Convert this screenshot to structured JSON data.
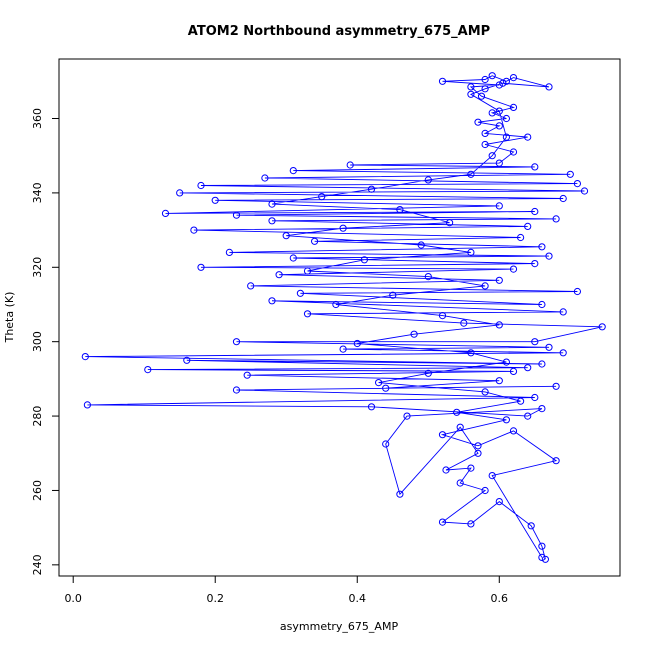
{
  "chart_data": {
    "type": "scatter",
    "title": "ATOM2 Northbound asymmetry_675_AMP",
    "xlabel": "asymmetry_675_AMP",
    "ylabel": "Theta (K)",
    "xlim": [
      -0.02,
      0.77
    ],
    "ylim": [
      237,
      376
    ],
    "xticks": [
      0.0,
      0.2,
      0.4,
      0.6
    ],
    "xtick_labels": [
      "0.0",
      "0.2",
      "0.4",
      "0.6"
    ],
    "yticks": [
      240,
      260,
      280,
      300,
      320,
      340,
      360
    ],
    "ytick_labels": [
      "240",
      "260",
      "280",
      "300",
      "320",
      "340",
      "360"
    ],
    "grid": false,
    "connected": true,
    "series": [
      {
        "color": "#0000ff",
        "marker": "open-circle",
        "points": [
          [
            0.665,
            241.5
          ],
          [
            0.66,
            245.0
          ],
          [
            0.645,
            250.5
          ],
          [
            0.6,
            257.0
          ],
          [
            0.56,
            251.0
          ],
          [
            0.52,
            251.5
          ],
          [
            0.58,
            260.0
          ],
          [
            0.545,
            262.0
          ],
          [
            0.56,
            266.0
          ],
          [
            0.525,
            265.5
          ],
          [
            0.57,
            270.0
          ],
          [
            0.545,
            277.0
          ],
          [
            0.46,
            259.0
          ],
          [
            0.44,
            272.5
          ],
          [
            0.47,
            280.0
          ],
          [
            0.66,
            282.0
          ],
          [
            0.64,
            280.0
          ],
          [
            0.42,
            282.5
          ],
          [
            0.02,
            283.0
          ],
          [
            0.65,
            285.0
          ],
          [
            0.23,
            287.0
          ],
          [
            0.68,
            288.0
          ],
          [
            0.44,
            287.5
          ],
          [
            0.6,
            289.5
          ],
          [
            0.245,
            291.0
          ],
          [
            0.62,
            292.0
          ],
          [
            0.105,
            292.5
          ],
          [
            0.64,
            293.0
          ],
          [
            0.16,
            295.0
          ],
          [
            0.66,
            294.0
          ],
          [
            0.017,
            296.0
          ],
          [
            0.69,
            297.0
          ],
          [
            0.38,
            298.0
          ],
          [
            0.67,
            298.5
          ],
          [
            0.23,
            300.0
          ],
          [
            0.65,
            300.0
          ],
          [
            0.745,
            304.0
          ],
          [
            0.55,
            305.0
          ],
          [
            0.33,
            307.5
          ],
          [
            0.69,
            308.0
          ],
          [
            0.28,
            311.0
          ],
          [
            0.66,
            310.0
          ],
          [
            0.32,
            313.0
          ],
          [
            0.71,
            313.5
          ],
          [
            0.25,
            315.0
          ],
          [
            0.6,
            316.5
          ],
          [
            0.29,
            318.0
          ],
          [
            0.62,
            319.5
          ],
          [
            0.18,
            320.0
          ],
          [
            0.65,
            321.0
          ],
          [
            0.31,
            322.5
          ],
          [
            0.67,
            323.0
          ],
          [
            0.22,
            324.0
          ],
          [
            0.66,
            325.5
          ],
          [
            0.34,
            327.0
          ],
          [
            0.63,
            328.0
          ],
          [
            0.17,
            330.0
          ],
          [
            0.64,
            331.0
          ],
          [
            0.28,
            332.5
          ],
          [
            0.68,
            333.0
          ],
          [
            0.23,
            334.0
          ],
          [
            0.65,
            335.0
          ],
          [
            0.13,
            334.5
          ],
          [
            0.6,
            336.5
          ],
          [
            0.2,
            338.0
          ],
          [
            0.69,
            338.5
          ],
          [
            0.15,
            340.0
          ],
          [
            0.72,
            340.5
          ],
          [
            0.18,
            342.0
          ],
          [
            0.71,
            342.5
          ],
          [
            0.27,
            344.0
          ],
          [
            0.7,
            345.0
          ],
          [
            0.31,
            346.0
          ],
          [
            0.65,
            347.0
          ],
          [
            0.39,
            347.5
          ],
          [
            0.6,
            348.0
          ],
          [
            0.62,
            351.0
          ],
          [
            0.58,
            353.0
          ],
          [
            0.64,
            355.0
          ],
          [
            0.58,
            356.0
          ],
          [
            0.6,
            358.0
          ],
          [
            0.57,
            359.0
          ],
          [
            0.61,
            360.0
          ],
          [
            0.59,
            361.5
          ],
          [
            0.62,
            363.0
          ],
          [
            0.575,
            366.0
          ],
          [
            0.56,
            368.5
          ],
          [
            0.6,
            369.0
          ],
          [
            0.52,
            370.0
          ],
          [
            0.58,
            370.5
          ],
          [
            0.59,
            371.5
          ],
          [
            0.61,
            370.0
          ],
          [
            0.62,
            371.0
          ],
          [
            0.67,
            368.5
          ],
          [
            0.605,
            369.5
          ],
          [
            0.58,
            368.0
          ],
          [
            0.56,
            366.5
          ],
          [
            0.6,
            362.0
          ],
          [
            0.61,
            355.0
          ],
          [
            0.59,
            350.0
          ],
          [
            0.56,
            345.0
          ],
          [
            0.5,
            343.5
          ],
          [
            0.42,
            341.0
          ],
          [
            0.35,
            339.0
          ],
          [
            0.28,
            337.0
          ],
          [
            0.46,
            335.5
          ],
          [
            0.53,
            332.0
          ],
          [
            0.38,
            330.5
          ],
          [
            0.3,
            328.5
          ],
          [
            0.49,
            326.0
          ],
          [
            0.56,
            324.0
          ],
          [
            0.41,
            322.0
          ],
          [
            0.33,
            319.0
          ],
          [
            0.5,
            317.5
          ],
          [
            0.58,
            315.0
          ],
          [
            0.45,
            312.5
          ],
          [
            0.37,
            310.0
          ],
          [
            0.52,
            307.0
          ],
          [
            0.6,
            304.5
          ],
          [
            0.48,
            302.0
          ],
          [
            0.4,
            299.5
          ],
          [
            0.56,
            297.0
          ],
          [
            0.61,
            294.5
          ],
          [
            0.5,
            291.5
          ],
          [
            0.43,
            289.0
          ],
          [
            0.58,
            286.5
          ],
          [
            0.63,
            284.0
          ],
          [
            0.54,
            281.0
          ],
          [
            0.61,
            279.0
          ],
          [
            0.52,
            275.0
          ],
          [
            0.57,
            272.0
          ],
          [
            0.62,
            276.0
          ],
          [
            0.68,
            268.0
          ],
          [
            0.59,
            264.0
          ],
          [
            0.66,
            242.0
          ]
        ]
      }
    ]
  }
}
